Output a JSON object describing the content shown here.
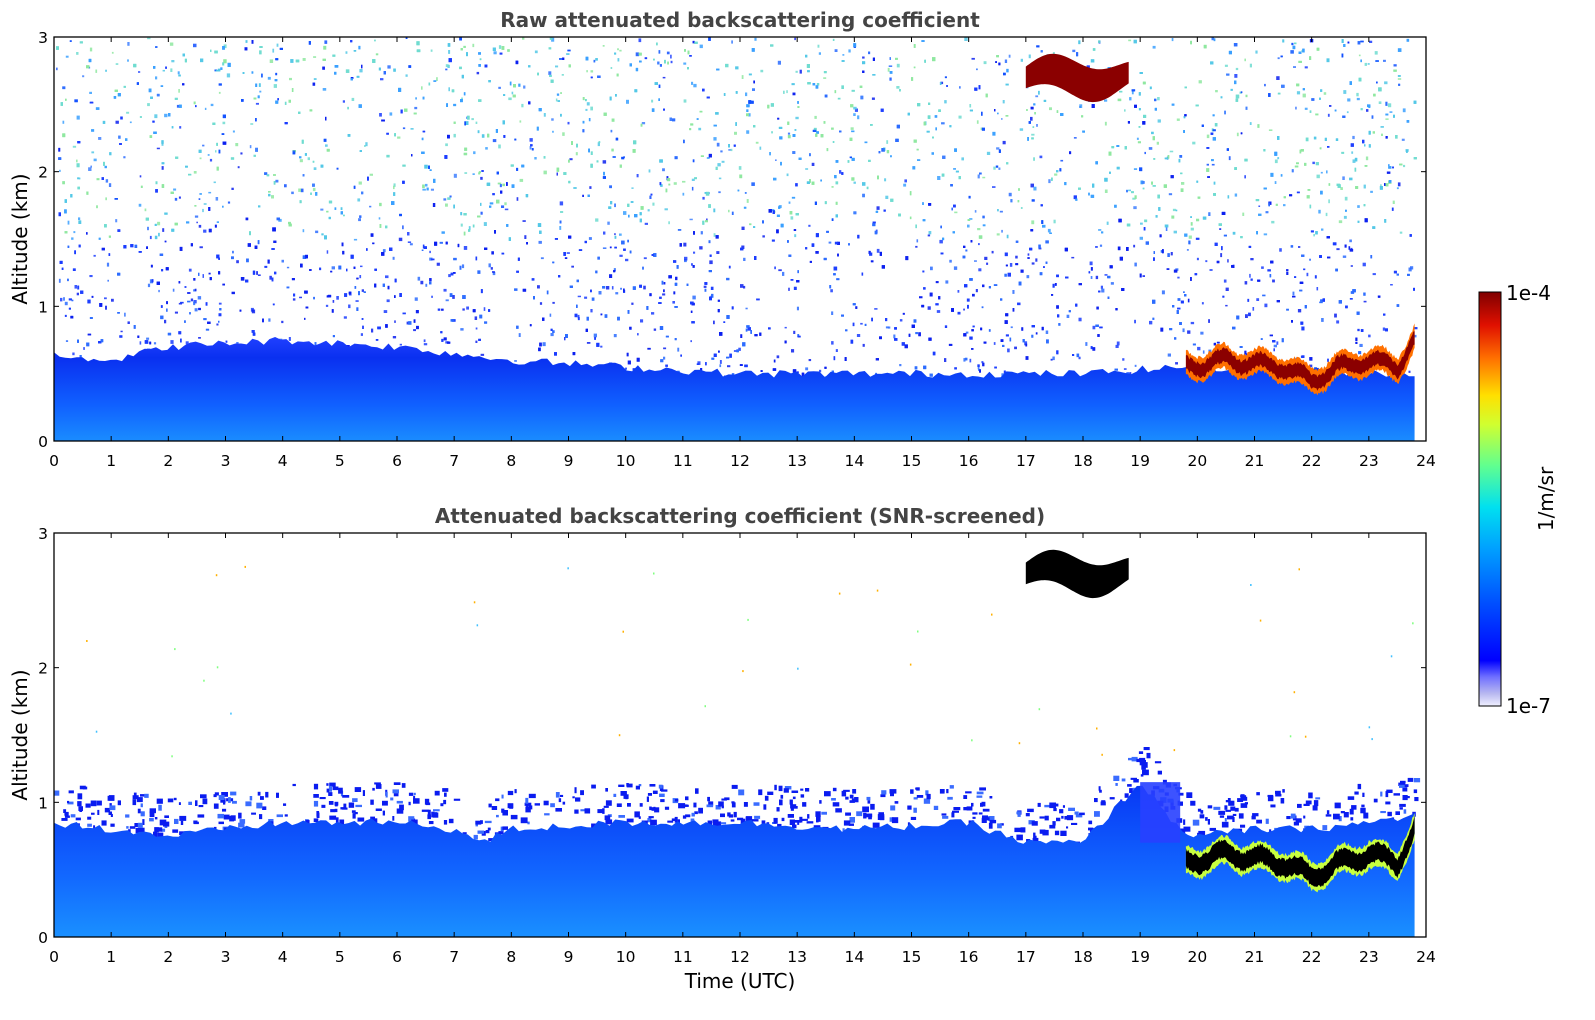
{
  "chart_data": [
    {
      "type": "heatmap",
      "title": "Raw attenuated backscattering coefficient",
      "xlabel": "",
      "ylabel": "Altitude (km)",
      "xlim": [
        0,
        24
      ],
      "ylim": [
        0,
        3
      ],
      "xticks": [
        "0",
        "1",
        "2",
        "3",
        "4",
        "5",
        "6",
        "7",
        "8",
        "9",
        "10",
        "11",
        "12",
        "13",
        "14",
        "15",
        "16",
        "17",
        "18",
        "19",
        "20",
        "21",
        "22",
        "23",
        "24"
      ],
      "yticks": [
        "0",
        "1",
        "2",
        "3"
      ],
      "grid": false,
      "data_end_hour": 23.8,
      "features": {
        "boundary_layer_top_km": [
          [
            0,
            0.65
          ],
          [
            1,
            0.6
          ],
          [
            2,
            0.7
          ],
          [
            4,
            0.75
          ],
          [
            6,
            0.7
          ],
          [
            8,
            0.6
          ],
          [
            10,
            0.55
          ],
          [
            12,
            0.5
          ],
          [
            14,
            0.5
          ],
          [
            16,
            0.5
          ],
          [
            18,
            0.5
          ],
          [
            19.7,
            0.55
          ],
          [
            23.8,
            0.5
          ]
        ],
        "cloud_layer_km": [
          [
            19.8,
            0.55
          ],
          [
            20.5,
            0.6
          ],
          [
            21.5,
            0.55
          ],
          [
            22,
            0.45
          ],
          [
            22.5,
            0.55
          ],
          [
            23,
            0.6
          ],
          [
            23.5,
            0.55
          ],
          [
            23.8,
            0.75
          ]
        ],
        "elevated_cloud": {
          "x_range": [
            17.0,
            18.8
          ],
          "alt_km": [
            2.55,
            2.85
          ]
        }
      }
    },
    {
      "type": "heatmap",
      "title": "Attenuated backscattering coefficient (SNR-screened)",
      "xlabel": "Time (UTC)",
      "ylabel": "Altitude (km)",
      "xlim": [
        0,
        24
      ],
      "ylim": [
        0,
        3
      ],
      "xticks": [
        "0",
        "1",
        "2",
        "3",
        "4",
        "5",
        "6",
        "7",
        "8",
        "9",
        "10",
        "11",
        "12",
        "13",
        "14",
        "15",
        "16",
        "17",
        "18",
        "19",
        "20",
        "21",
        "22",
        "23",
        "24"
      ],
      "yticks": [
        "0",
        "1",
        "2",
        "3"
      ],
      "grid": false,
      "data_end_hour": 23.8,
      "features": {
        "screened_top_km": [
          [
            0,
            0.85
          ],
          [
            1,
            0.8
          ],
          [
            2,
            0.75
          ],
          [
            3,
            0.8
          ],
          [
            4,
            0.85
          ],
          [
            5,
            0.85
          ],
          [
            6,
            0.85
          ],
          [
            7,
            0.8
          ],
          [
            7.5,
            0.7
          ],
          [
            8,
            0.8
          ],
          [
            10,
            0.85
          ],
          [
            12,
            0.85
          ],
          [
            14,
            0.8
          ],
          [
            16,
            0.85
          ],
          [
            17,
            0.7
          ],
          [
            18,
            0.7
          ],
          [
            19,
            1.15
          ],
          [
            19.7,
            0.8
          ],
          [
            20,
            0.75
          ],
          [
            21,
            0.8
          ],
          [
            22,
            0.8
          ],
          [
            23,
            0.85
          ],
          [
            23.8,
            0.9
          ]
        ],
        "cloud_layer_km": [
          [
            19.8,
            0.55
          ],
          [
            20.5,
            0.62
          ],
          [
            21.5,
            0.55
          ],
          [
            22,
            0.45
          ],
          [
            22.5,
            0.55
          ],
          [
            23,
            0.62
          ],
          [
            23.5,
            0.55
          ],
          [
            23.8,
            0.8
          ]
        ],
        "elevated_cloud": {
          "x_range": [
            17.0,
            18.8
          ],
          "alt_km": [
            2.55,
            2.85
          ]
        }
      }
    }
  ],
  "colorbar": {
    "label": "1/m/sr",
    "max_label": "1e-4",
    "min_label": "1e-7",
    "scale": "log",
    "colormap": "jet"
  },
  "colors": {
    "title": "#444444",
    "boundary_layer": "#1e5cf0",
    "cloud_core": "#8b0000",
    "screened_cloud": "#000000"
  }
}
